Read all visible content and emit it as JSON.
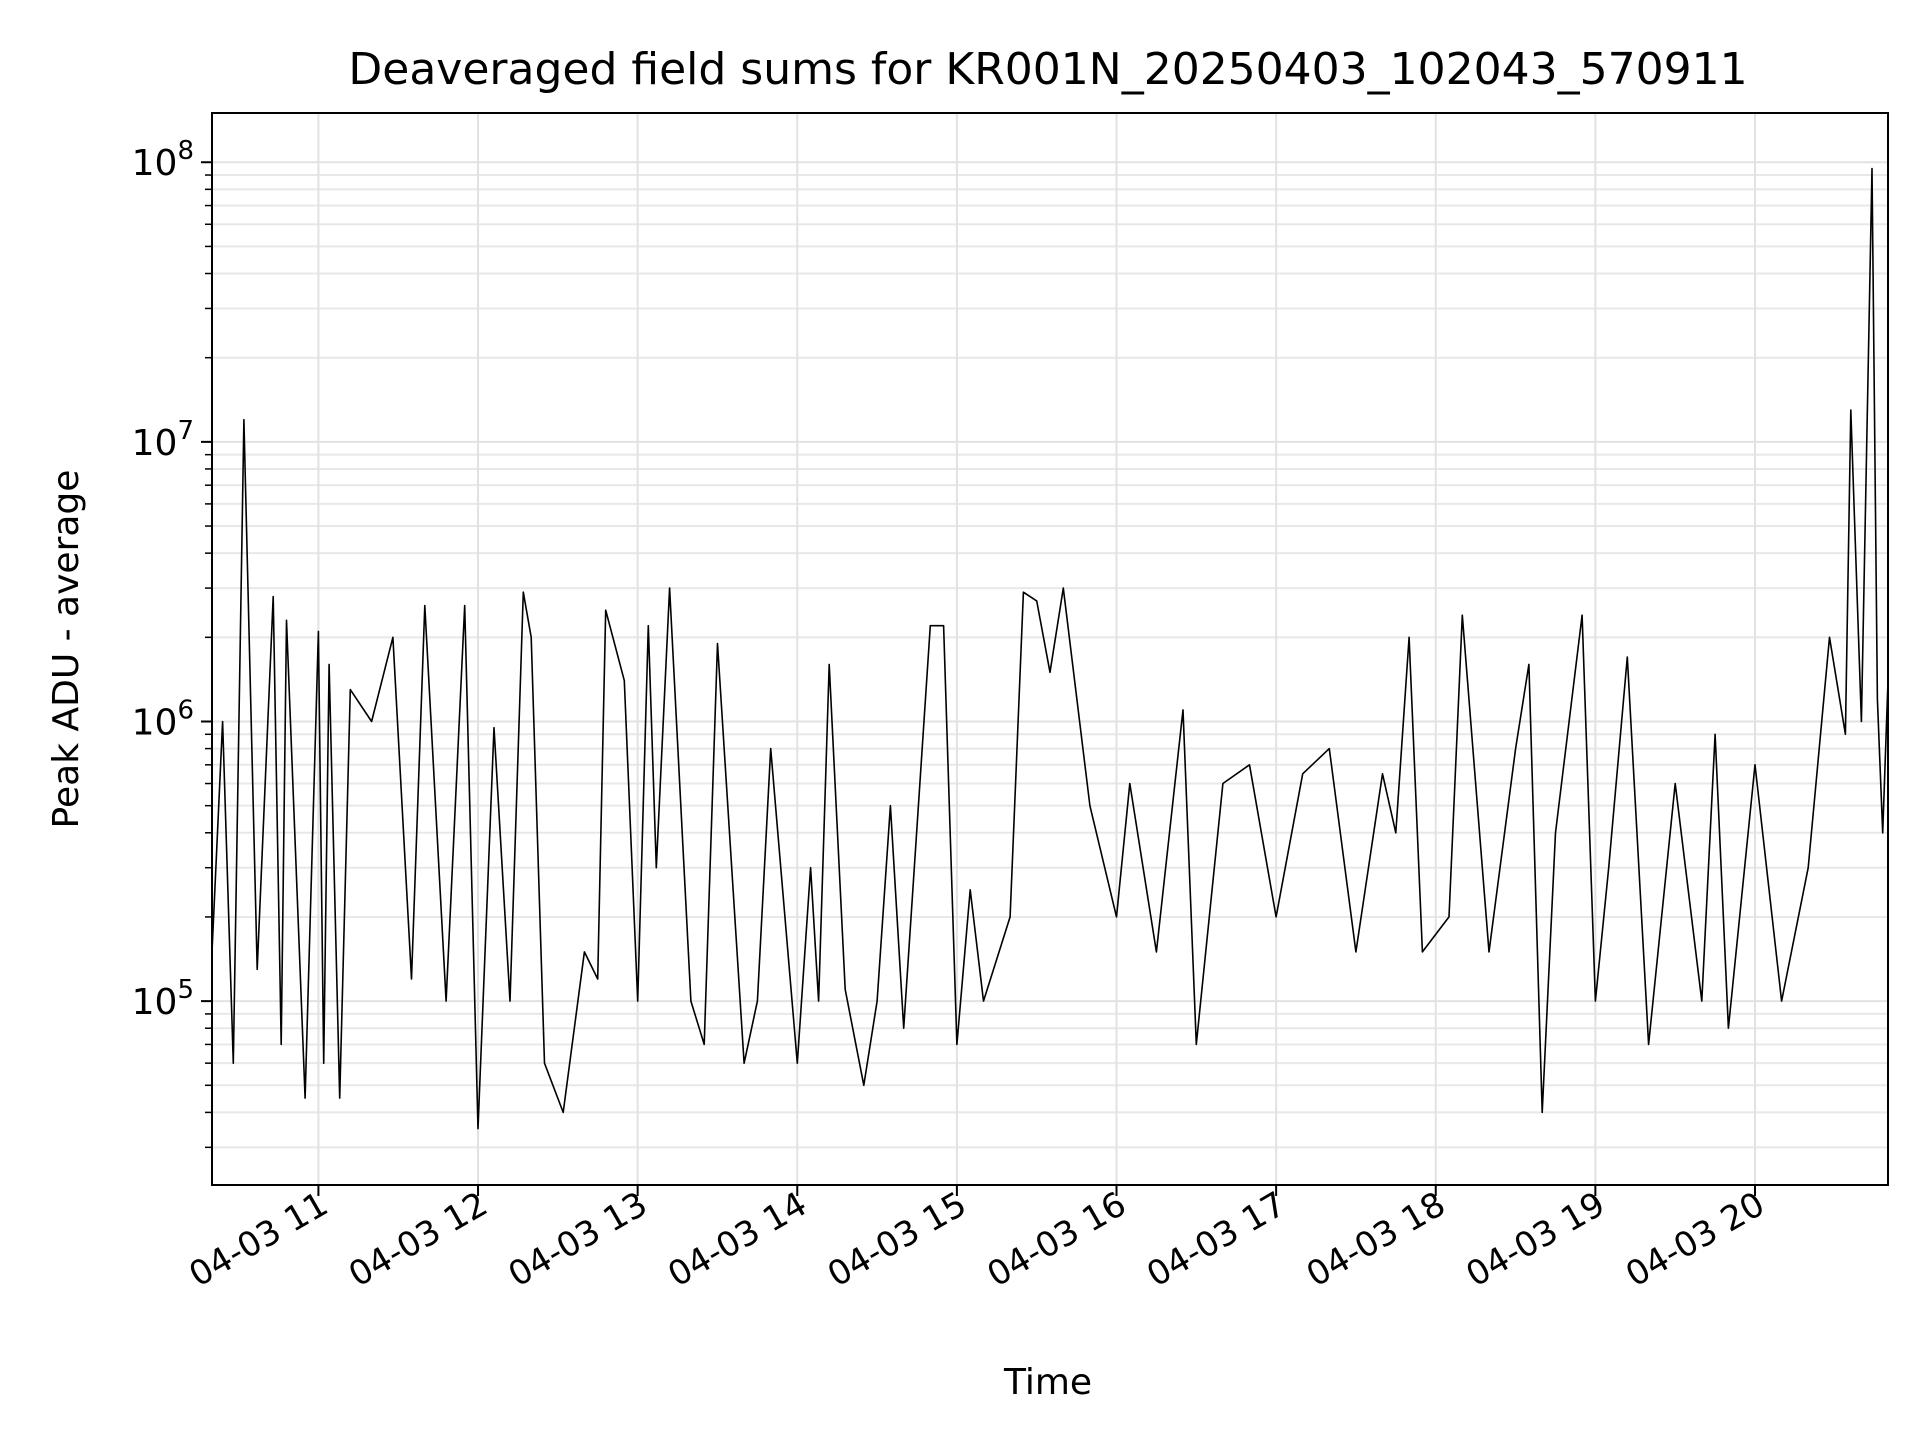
{
  "chart_data": {
    "type": "line",
    "title": "Deaveraged field sums for KR001N_20250403_102043_570911",
    "xlabel": "Time",
    "ylabel": "Peak ADU - average",
    "yscale": "log",
    "ylim": [
      22000,
      150000000
    ],
    "xlim": [
      "04-03 10:20",
      "04-03 20:50"
    ],
    "x_tick_labels": [
      "04-03 11",
      "04-03 12",
      "04-03 13",
      "04-03 14",
      "04-03 15",
      "04-03 16",
      "04-03 17",
      "04-03 18",
      "04-03 19",
      "04-03 20"
    ],
    "y_ticks": [
      {
        "base": "10",
        "exp": "5",
        "value": 100000
      },
      {
        "base": "10",
        "exp": "6",
        "value": 1000000
      },
      {
        "base": "10",
        "exp": "7",
        "value": 10000000
      },
      {
        "base": "10",
        "exp": "8",
        "value": 100000000
      }
    ],
    "grid": true,
    "line_color": "#000000",
    "series": [
      {
        "points": [
          [
            "04-03 10:20",
            150000
          ],
          [
            "04-03 10:24",
            1000000
          ],
          [
            "04-03 10:28",
            60000
          ],
          [
            "04-03 10:32",
            12000000
          ],
          [
            "04-03 10:37",
            130000
          ],
          [
            "04-03 10:43",
            2800000
          ],
          [
            "04-03 10:46",
            70000
          ],
          [
            "04-03 10:48",
            2300000
          ],
          [
            "04-03 10:55",
            45000
          ],
          [
            "04-03 11:00",
            2100000
          ],
          [
            "04-03 11:02",
            60000
          ],
          [
            "04-03 11:04",
            1600000
          ],
          [
            "04-03 11:08",
            45000
          ],
          [
            "04-03 11:12",
            1300000
          ],
          [
            "04-03 11:20",
            1000000
          ],
          [
            "04-03 11:28",
            2000000
          ],
          [
            "04-03 11:35",
            120000
          ],
          [
            "04-03 11:40",
            2600000
          ],
          [
            "04-03 11:48",
            100000
          ],
          [
            "04-03 11:55",
            2600000
          ],
          [
            "04-03 12:00",
            35000
          ],
          [
            "04-03 12:06",
            950000
          ],
          [
            "04-03 12:12",
            100000
          ],
          [
            "04-03 12:17",
            2900000
          ],
          [
            "04-03 12:20",
            2000000
          ],
          [
            "04-03 12:25",
            60000
          ],
          [
            "04-03 12:32",
            40000
          ],
          [
            "04-03 12:40",
            150000
          ],
          [
            "04-03 12:45",
            120000
          ],
          [
            "04-03 12:48",
            2500000
          ],
          [
            "04-03 12:55",
            1400000
          ],
          [
            "04-03 13:00",
            100000
          ],
          [
            "04-03 13:04",
            2200000
          ],
          [
            "04-03 13:07",
            300000
          ],
          [
            "04-03 13:12",
            3000000
          ],
          [
            "04-03 13:20",
            100000
          ],
          [
            "04-03 13:25",
            70000
          ],
          [
            "04-03 13:30",
            1900000
          ],
          [
            "04-03 13:40",
            60000
          ],
          [
            "04-03 13:45",
            100000
          ],
          [
            "04-03 13:50",
            800000
          ],
          [
            "04-03 14:00",
            60000
          ],
          [
            "04-03 14:05",
            300000
          ],
          [
            "04-03 14:08",
            100000
          ],
          [
            "04-03 14:12",
            1600000
          ],
          [
            "04-03 14:18",
            110000
          ],
          [
            "04-03 14:25",
            50000
          ],
          [
            "04-03 14:30",
            100000
          ],
          [
            "04-03 14:35",
            500000
          ],
          [
            "04-03 14:40",
            80000
          ],
          [
            "04-03 14:50",
            2200000
          ],
          [
            "04-03 14:55",
            2200000
          ],
          [
            "04-03 15:00",
            70000
          ],
          [
            "04-03 15:05",
            250000
          ],
          [
            "04-03 15:10",
            100000
          ],
          [
            "04-03 15:20",
            200000
          ],
          [
            "04-03 15:25",
            2900000
          ],
          [
            "04-03 15:30",
            2700000
          ],
          [
            "04-03 15:35",
            1500000
          ],
          [
            "04-03 15:40",
            3000000
          ],
          [
            "04-03 15:50",
            500000
          ],
          [
            "04-03 16:00",
            200000
          ],
          [
            "04-03 16:05",
            600000
          ],
          [
            "04-03 16:15",
            150000
          ],
          [
            "04-03 16:25",
            1100000
          ],
          [
            "04-03 16:30",
            70000
          ],
          [
            "04-03 16:40",
            600000
          ],
          [
            "04-03 16:50",
            700000
          ],
          [
            "04-03 17:00",
            200000
          ],
          [
            "04-03 17:10",
            650000
          ],
          [
            "04-03 17:20",
            800000
          ],
          [
            "04-03 17:30",
            150000
          ],
          [
            "04-03 17:40",
            650000
          ],
          [
            "04-03 17:45",
            400000
          ],
          [
            "04-03 17:50",
            2000000
          ],
          [
            "04-03 17:55",
            150000
          ],
          [
            "04-03 18:05",
            200000
          ],
          [
            "04-03 18:10",
            2400000
          ],
          [
            "04-03 18:20",
            150000
          ],
          [
            "04-03 18:30",
            800000
          ],
          [
            "04-03 18:35",
            1600000
          ],
          [
            "04-03 18:40",
            40000
          ],
          [
            "04-03 18:45",
            400000
          ],
          [
            "04-03 18:55",
            2400000
          ],
          [
            "04-03 19:00",
            100000
          ],
          [
            "04-03 19:05",
            300000
          ],
          [
            "04-03 19:12",
            1700000
          ],
          [
            "04-03 19:20",
            70000
          ],
          [
            "04-03 19:30",
            600000
          ],
          [
            "04-03 19:40",
            100000
          ],
          [
            "04-03 19:45",
            900000
          ],
          [
            "04-03 19:50",
            80000
          ],
          [
            "04-03 20:00",
            700000
          ],
          [
            "04-03 20:10",
            100000
          ],
          [
            "04-03 20:20",
            300000
          ],
          [
            "04-03 20:28",
            2000000
          ],
          [
            "04-03 20:34",
            900000
          ],
          [
            "04-03 20:36",
            13000000
          ],
          [
            "04-03 20:40",
            1000000
          ],
          [
            "04-03 20:44",
            95000000
          ],
          [
            "04-03 20:46",
            1200000
          ],
          [
            "04-03 20:48",
            400000
          ],
          [
            "04-03 20:50",
            1400000
          ]
        ]
      }
    ]
  }
}
